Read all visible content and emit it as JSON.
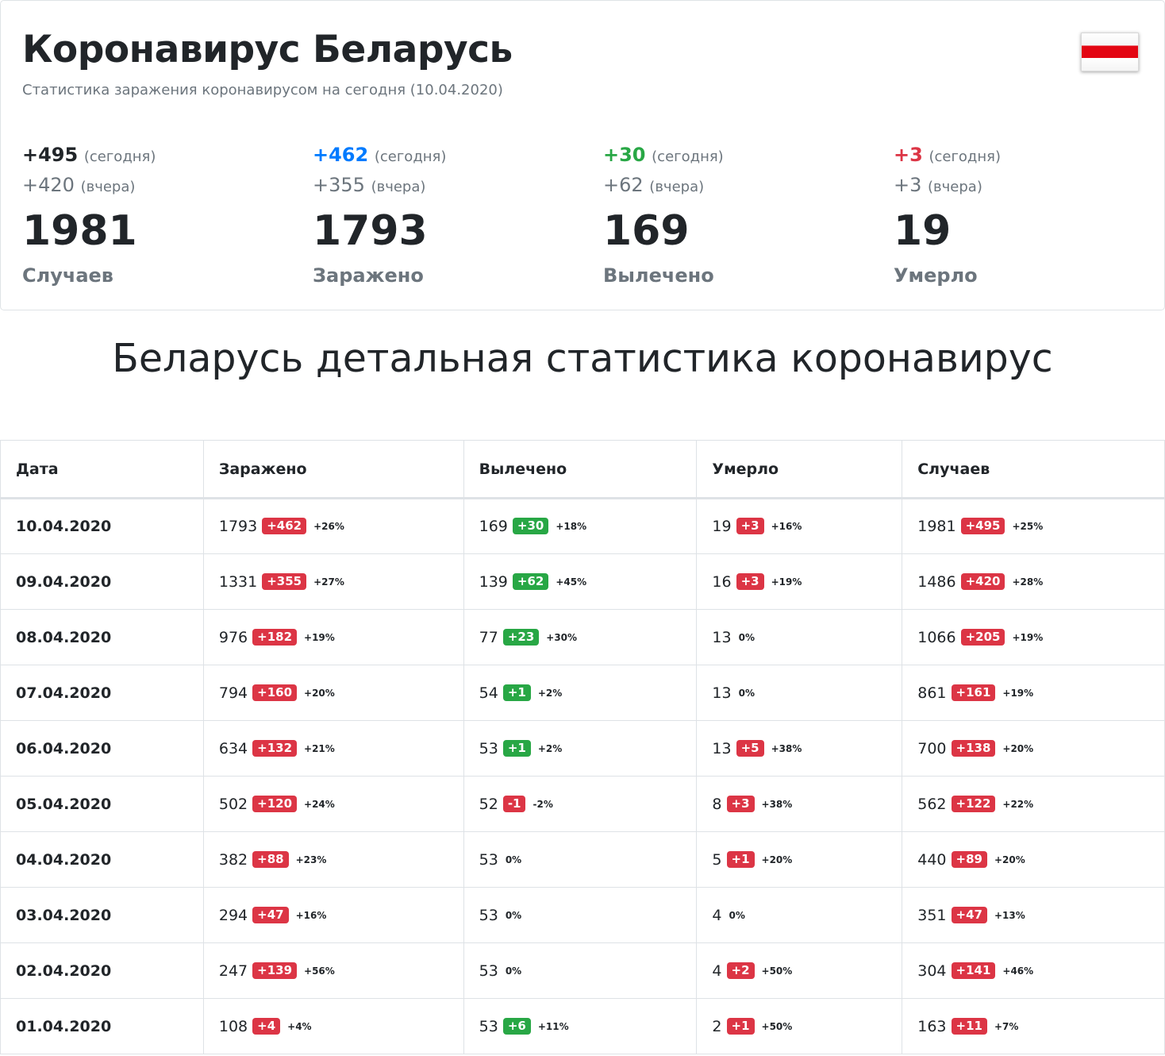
{
  "header": {
    "title": "Коронавирус Беларусь",
    "subtitle": "Статистика заражения коронавирусом на сегодня (10.04.2020)"
  },
  "summary": [
    {
      "today": "+495",
      "today_label": "(сегодня)",
      "yesterday": "+420",
      "yesterday_label": "(вчера)",
      "total": "1981",
      "label": "Случаев",
      "color": "#212529"
    },
    {
      "today": "+462",
      "today_label": "(сегодня)",
      "yesterday": "+355",
      "yesterday_label": "(вчера)",
      "total": "1793",
      "label": "Заражено",
      "color": "#007bff"
    },
    {
      "today": "+30",
      "today_label": "(сегодня)",
      "yesterday": "+62",
      "yesterday_label": "(вчера)",
      "total": "169",
      "label": "Вылечено",
      "color": "#28a745"
    },
    {
      "today": "+3",
      "today_label": "(сегодня)",
      "yesterday": "+3",
      "yesterday_label": "(вчера)",
      "total": "19",
      "label": "Умерло",
      "color": "#dc3545"
    }
  ],
  "section_title": "Беларусь детальная статистика коронавирус",
  "table": {
    "headers": [
      "Дата",
      "Заражено",
      "Вылечено",
      "Умерло",
      "Случаев"
    ],
    "rows": [
      {
        "date": "10.04.2020",
        "cells": [
          [
            "1793",
            "+462",
            "red",
            "+26%"
          ],
          [
            "169",
            "+30",
            "green",
            "+18%"
          ],
          [
            "19",
            "+3",
            "red",
            "+16%"
          ],
          [
            "1981",
            "+495",
            "red",
            "+25%"
          ]
        ]
      },
      {
        "date": "09.04.2020",
        "cells": [
          [
            "1331",
            "+355",
            "red",
            "+27%"
          ],
          [
            "139",
            "+62",
            "green",
            "+45%"
          ],
          [
            "16",
            "+3",
            "red",
            "+19%"
          ],
          [
            "1486",
            "+420",
            "red",
            "+28%"
          ]
        ]
      },
      {
        "date": "08.04.2020",
        "cells": [
          [
            "976",
            "+182",
            "red",
            "+19%"
          ],
          [
            "77",
            "+23",
            "green",
            "+30%"
          ],
          [
            "13",
            "",
            "",
            "0%"
          ],
          [
            "1066",
            "+205",
            "red",
            "+19%"
          ]
        ]
      },
      {
        "date": "07.04.2020",
        "cells": [
          [
            "794",
            "+160",
            "red",
            "+20%"
          ],
          [
            "54",
            "+1",
            "green",
            "+2%"
          ],
          [
            "13",
            "",
            "",
            "0%"
          ],
          [
            "861",
            "+161",
            "red",
            "+19%"
          ]
        ]
      },
      {
        "date": "06.04.2020",
        "cells": [
          [
            "634",
            "+132",
            "red",
            "+21%"
          ],
          [
            "53",
            "+1",
            "green",
            "+2%"
          ],
          [
            "13",
            "+5",
            "red",
            "+38%"
          ],
          [
            "700",
            "+138",
            "red",
            "+20%"
          ]
        ]
      },
      {
        "date": "05.04.2020",
        "cells": [
          [
            "502",
            "+120",
            "red",
            "+24%"
          ],
          [
            "52",
            "-1",
            "red",
            "-2%"
          ],
          [
            "8",
            "+3",
            "red",
            "+38%"
          ],
          [
            "562",
            "+122",
            "red",
            "+22%"
          ]
        ]
      },
      {
        "date": "04.04.2020",
        "cells": [
          [
            "382",
            "+88",
            "red",
            "+23%"
          ],
          [
            "53",
            "",
            "",
            "0%"
          ],
          [
            "5",
            "+1",
            "red",
            "+20%"
          ],
          [
            "440",
            "+89",
            "red",
            "+20%"
          ]
        ]
      },
      {
        "date": "03.04.2020",
        "cells": [
          [
            "294",
            "+47",
            "red",
            "+16%"
          ],
          [
            "53",
            "",
            "",
            "0%"
          ],
          [
            "4",
            "",
            "",
            "0%"
          ],
          [
            "351",
            "+47",
            "red",
            "+13%"
          ]
        ]
      },
      {
        "date": "02.04.2020",
        "cells": [
          [
            "247",
            "+139",
            "red",
            "+56%"
          ],
          [
            "53",
            "",
            "",
            "0%"
          ],
          [
            "4",
            "+2",
            "red",
            "+50%"
          ],
          [
            "304",
            "+141",
            "red",
            "+46%"
          ]
        ]
      },
      {
        "date": "01.04.2020",
        "cells": [
          [
            "108",
            "+4",
            "red",
            "+4%"
          ],
          [
            "53",
            "+6",
            "green",
            "+11%"
          ],
          [
            "2",
            "+1",
            "red",
            "+50%"
          ],
          [
            "163",
            "+11",
            "red",
            "+7%"
          ]
        ]
      }
    ]
  }
}
